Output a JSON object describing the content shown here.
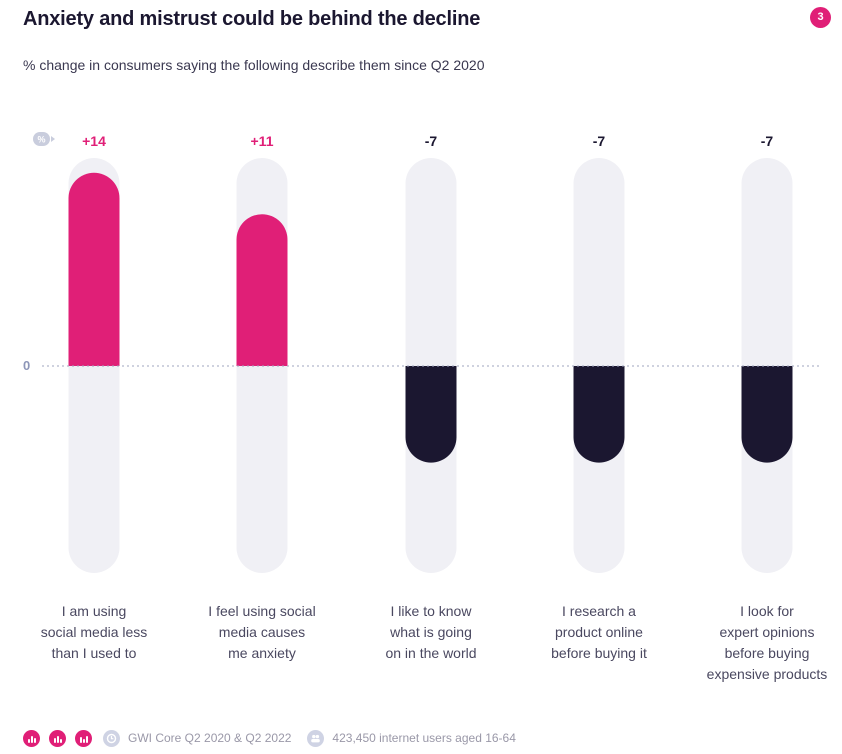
{
  "header": {
    "title": "Anxiety and mistrust could be behind the decline",
    "subtitle": "% change in consumers saying the following describe them since Q2 2020",
    "page_number": "3"
  },
  "unit_badge": "%",
  "zero_label": "0",
  "chart_data": {
    "type": "bar",
    "title": "Anxiety and mistrust could be behind the decline",
    "subtitle": "% change in consumers saying the following describe them since Q2 2020",
    "categories": [
      [
        "I am using",
        "social media less",
        "than I used to"
      ],
      [
        "I feel using social",
        "media causes",
        "me anxiety"
      ],
      [
        "I like to know",
        "what is going",
        "on in the world"
      ],
      [
        "I research a",
        "product online",
        "before buying it"
      ],
      [
        "I look for",
        "expert opinions",
        "before buying",
        "expensive products"
      ]
    ],
    "values": [
      14,
      11,
      -7,
      -7,
      -7
    ],
    "value_labels": [
      "+14",
      "+11",
      "-7",
      "-7",
      "-7"
    ],
    "ylim": [
      -15,
      15
    ],
    "ylabel": "%",
    "zero_line": true,
    "colors": {
      "positive": "#e01f77",
      "negative": "#1b1730",
      "track": "#f0f0f5"
    }
  },
  "footer": {
    "source": "GWI Core Q2 2020 & Q2 2022",
    "sample": "423,450 internet users aged 16-64"
  }
}
